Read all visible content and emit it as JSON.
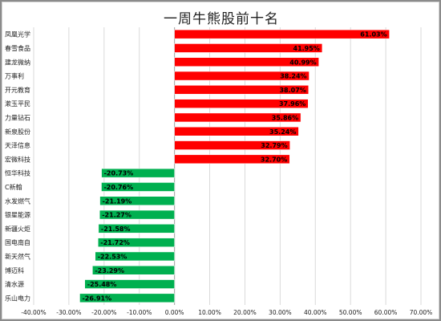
{
  "chart_data": {
    "type": "bar",
    "orientation": "horizontal",
    "title": "一周牛熊股前十名",
    "categories": [
      "凤凰光学",
      "春雪食品",
      "建龙微纳",
      "万事利",
      "开元教育",
      "漱玉平民",
      "力量钻石",
      "新泉股份",
      "天泽信息",
      "宏微科技",
      "恒华科技",
      "C新翰",
      "水发燃气",
      "银星能源",
      "新疆火炬",
      "国电南自",
      "新天然气",
      "博迈科",
      "清水源",
      "乐山电力"
    ],
    "values": [
      61.03,
      41.95,
      40.99,
      38.24,
      38.07,
      37.96,
      35.86,
      35.24,
      32.79,
      32.7,
      -20.73,
      -20.76,
      -21.19,
      -21.27,
      -21.58,
      -21.72,
      -22.53,
      -23.29,
      -25.48,
      -26.91
    ],
    "value_labels": [
      "61.03%",
      "41.95%",
      "40.99%",
      "38.24%",
      "38.07%",
      "37.96%",
      "35.86%",
      "35.24%",
      "32.79%",
      "32.70%",
      "-20.73%",
      "-20.76%",
      "-21.19%",
      "-21.27%",
      "-21.58%",
      "-21.72%",
      "-22.53%",
      "-23.29%",
      "-25.48%",
      "-26.91%"
    ],
    "x_ticks": [
      -40,
      -30,
      -20,
      -10,
      0,
      10,
      20,
      30,
      40,
      50,
      60,
      70
    ],
    "x_tick_labels": [
      "-40.00%",
      "-30.00%",
      "-20.00%",
      "-10.00%",
      "0.00%",
      "10.00%",
      "20.00%",
      "30.00%",
      "40.00%",
      "50.00%",
      "60.00%",
      "70.00%"
    ],
    "xlim": [
      -40,
      70
    ],
    "grid": true,
    "legend": "none",
    "colors": {
      "positive": "#ff0000",
      "negative": "#00b050",
      "grid": "#d9d9d9",
      "axis": "#a6a6a6",
      "text": "#222222"
    }
  }
}
